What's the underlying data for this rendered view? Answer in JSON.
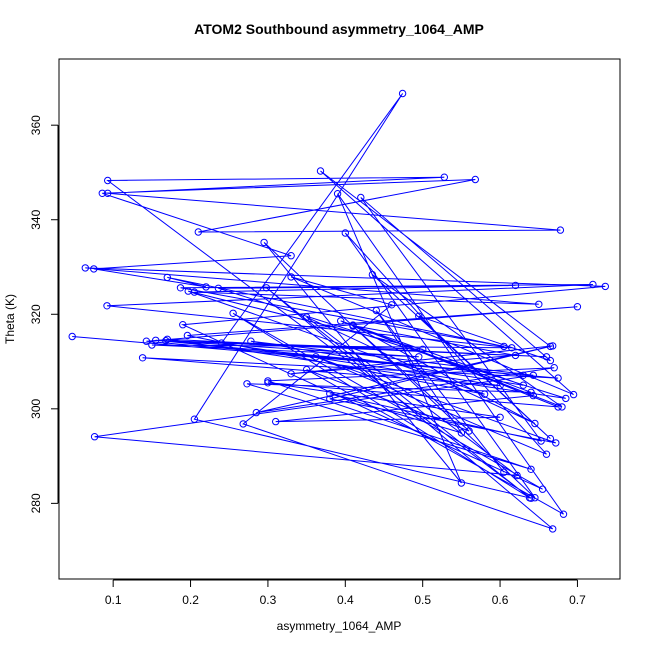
{
  "chart_data": {
    "type": "line",
    "title": "ATOM2 Southbound asymmetry_1064_AMP",
    "xlabel": "asymmetry_1064_AMP",
    "ylabel": "Theta (K)",
    "xlim": [
      0.03,
      0.755
    ],
    "ylim": [
      264,
      374
    ],
    "x_ticks": [
      0.1,
      0.2,
      0.3,
      0.4,
      0.5,
      0.6,
      0.7
    ],
    "x_tick_labels": [
      "0.1",
      "0.2",
      "0.3",
      "0.4",
      "0.5",
      "0.6",
      "0.7"
    ],
    "y_ticks": [
      280,
      300,
      320,
      340,
      360
    ],
    "y_tick_labels": [
      "280",
      "300",
      "320",
      "340",
      "360"
    ],
    "grid": false,
    "legend": "none",
    "series_color": "#0000ff",
    "marker": "open-circle",
    "x": [
      0.047,
      0.675,
      0.138,
      0.6,
      0.24,
      0.474,
      0.205,
      0.64,
      0.093,
      0.528,
      0.093,
      0.678,
      0.21,
      0.568,
      0.086,
      0.33,
      0.075,
      0.22,
      0.17,
      0.605,
      0.187,
      0.72,
      0.092,
      0.615,
      0.15,
      0.495,
      0.155,
      0.63,
      0.143,
      0.7,
      0.196,
      0.58,
      0.197,
      0.5,
      0.168,
      0.66,
      0.17,
      0.685,
      0.236,
      0.62,
      0.205,
      0.65,
      0.064,
      0.736,
      0.19,
      0.655,
      0.255,
      0.638,
      0.298,
      0.668,
      0.268,
      0.46,
      0.33,
      0.695,
      0.368,
      0.665,
      0.285,
      0.67,
      0.3,
      0.64,
      0.273,
      0.64,
      0.41,
      0.56,
      0.35,
      0.682,
      0.39,
      0.55,
      0.295,
      0.645,
      0.4,
      0.66,
      0.362,
      0.672,
      0.38,
      0.668,
      0.33,
      0.62,
      0.41,
      0.645,
      0.35,
      0.622,
      0.076,
      0.643,
      0.278,
      0.63,
      0.394,
      0.643,
      0.31,
      0.6,
      0.3,
      0.675,
      0.41,
      0.68,
      0.435,
      0.665,
      0.495,
      0.665,
      0.42,
      0.653,
      0.38,
      0.55,
      0.44,
      0.605
    ],
    "y": [
      315.3,
      306.5,
      310.8,
      304.9,
      313.9,
      366.7,
      297.8,
      281.1,
      348.3,
      349.0,
      345.6,
      337.8,
      337.4,
      348.5,
      345.6,
      332.4,
      329.6,
      325.8,
      327.8,
      313.2,
      325.6,
      326.3,
      321.8,
      312.9,
      313.5,
      311.0,
      314.5,
      307.1,
      314.3,
      321.6,
      315.5,
      303.1,
      324.9,
      312.6,
      314.4,
      311.0,
      314.7,
      302.2,
      325.5,
      326.1,
      324.7,
      322.1,
      329.8,
      325.9,
      317.8,
      283.0,
      320.2,
      281.2,
      325.6,
      274.6,
      296.8,
      322.0,
      327.9,
      303.0,
      350.3,
      313.2,
      299.2,
      308.7,
      305.9,
      287.2,
      305.3,
      303.5,
      317.5,
      295.3,
      308.3,
      277.7,
      345.5,
      284.3,
      335.2,
      281.2,
      337.2,
      290.4,
      311.0,
      292.8,
      302.1,
      313.3,
      307.4,
      311.3,
      317.6,
      296.9,
      319.4,
      285.9,
      294.1,
      307.1,
      314.3,
      305.0,
      318.6,
      302.8,
      297.3,
      298.2,
      305.5,
      300.4,
      317.7,
      300.4,
      328.4,
      293.7,
      319.6,
      310.2,
      344.7,
      293.2,
      303.2,
      294.9,
      320.8,
      286.6
    ]
  }
}
